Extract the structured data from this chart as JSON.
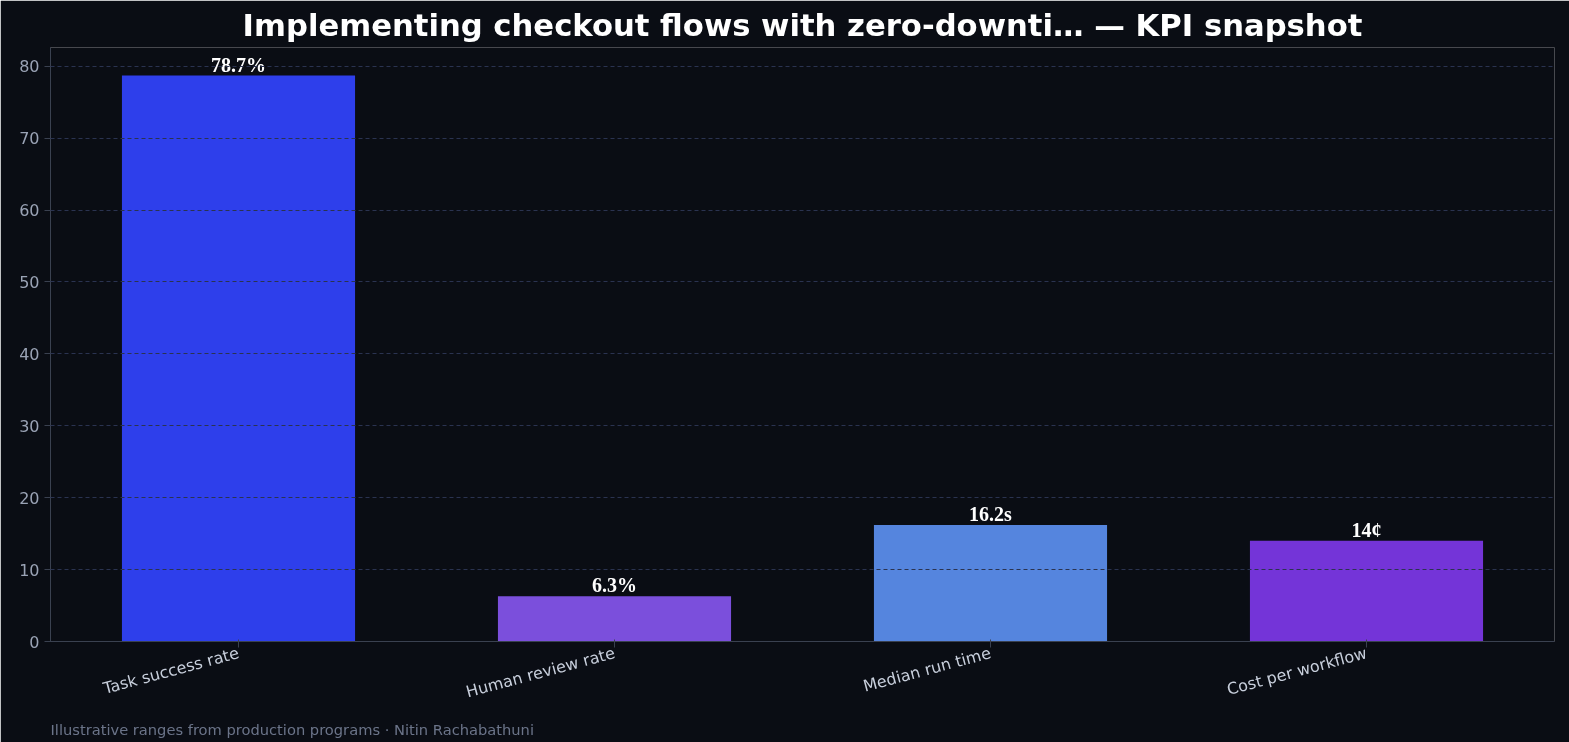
{
  "chart_data": {
    "type": "bar",
    "title": "Implementing checkout flows with zero-downti… — KPI snapshot",
    "categories": [
      "Task success rate",
      "Human review rate",
      "Median run time",
      "Cost per workflow"
    ],
    "values": [
      78.7,
      6.3,
      16.2,
      14
    ],
    "colors": [
      "#2e3feb",
      "#7b4fdc",
      "#5585de",
      "#7434d8"
    ],
    "value_labels": [
      "78.7%",
      "6.3%",
      "16.2s",
      "14¢"
    ],
    "ylim": [
      0,
      82.6
    ],
    "yticks": [
      0,
      10,
      20,
      30,
      40,
      50,
      60,
      70,
      80
    ],
    "grid": "y",
    "annotations": [
      "Illustrative ranges from production programs · Nitin Rachabathuni"
    ]
  }
}
